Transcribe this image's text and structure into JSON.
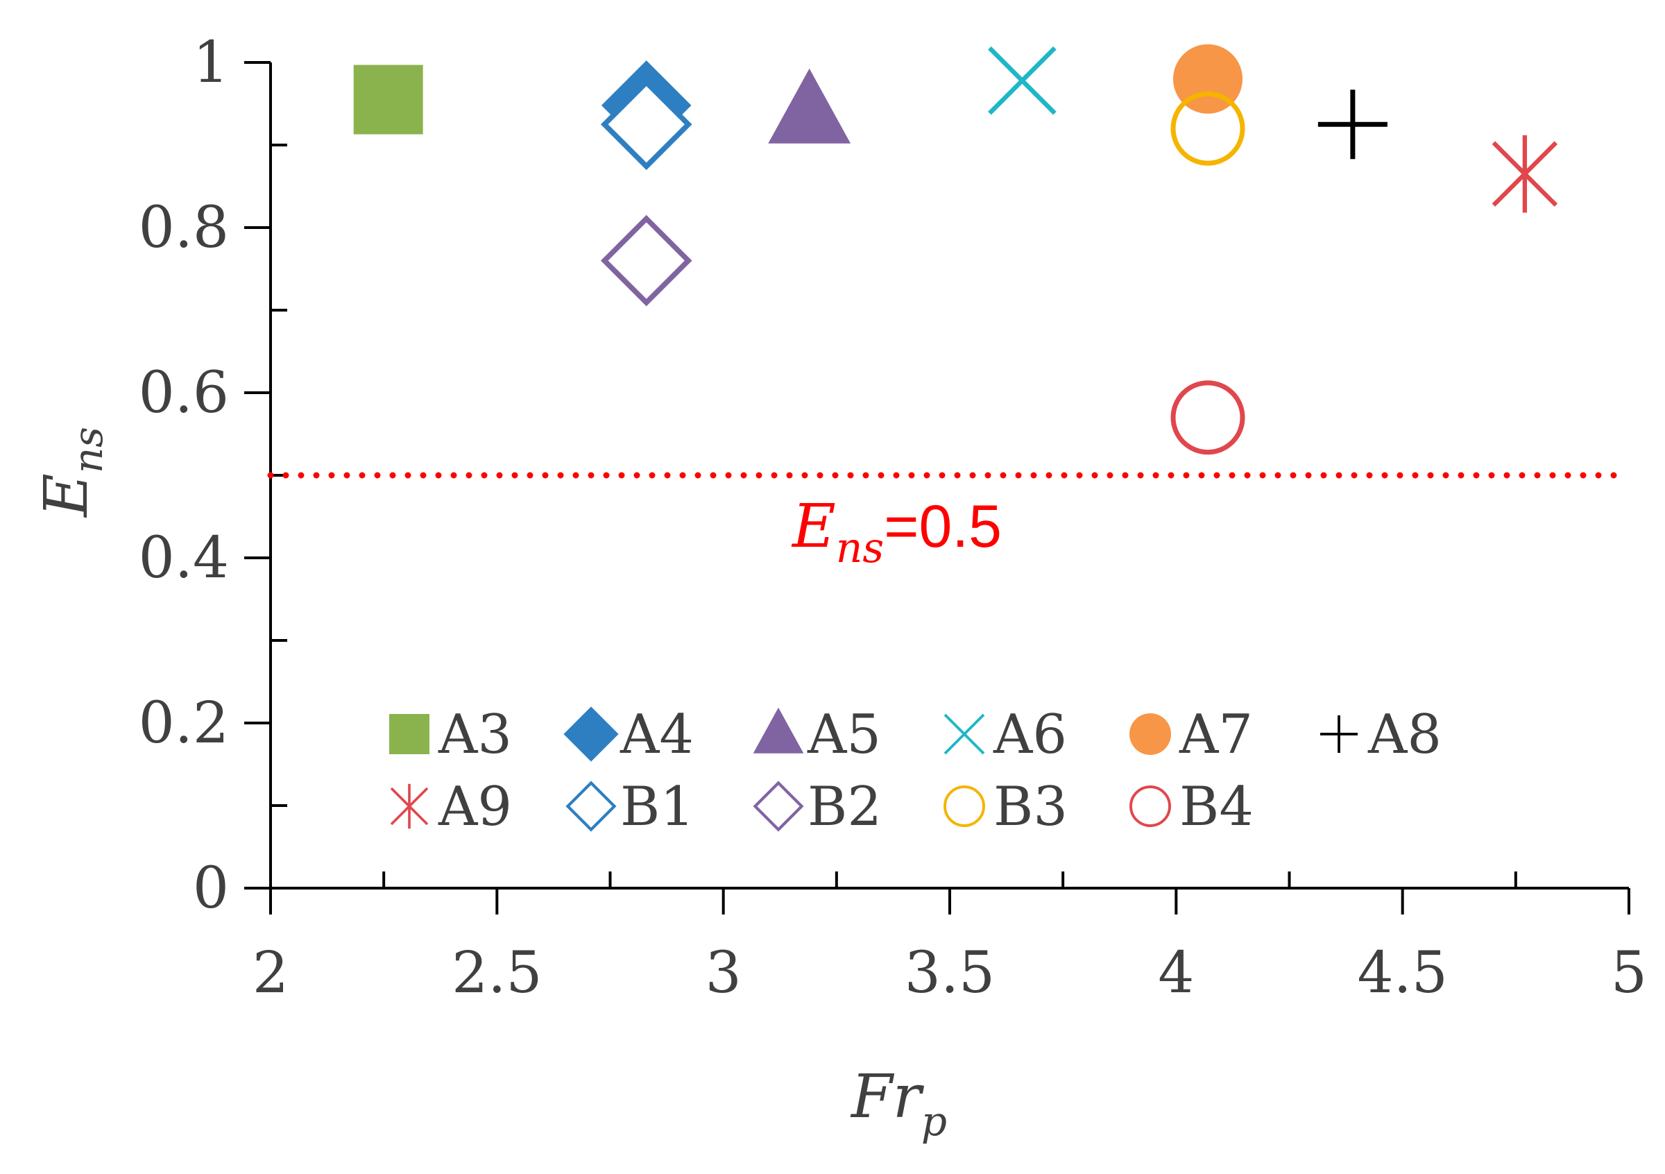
{
  "chart_data": {
    "type": "scatter",
    "xlim": [
      2,
      5
    ],
    "ylim": [
      0,
      1
    ],
    "x_ticks": [
      "2",
      "2.5",
      "3",
      "3.5",
      "4",
      "4.5",
      "5"
    ],
    "y_ticks": [
      "0",
      "0.2",
      "0.4",
      "0.6",
      "0.8",
      "1"
    ],
    "xlabel": {
      "main": "Fr",
      "sub": "p"
    },
    "ylabel": {
      "main": "E",
      "sub": "ns"
    },
    "reference_line": {
      "y": 0.5,
      "color": "#ff0000",
      "style": "dotted",
      "label_main": "E",
      "label_sub": "ns",
      "label_value": "=0.5"
    },
    "grid": false,
    "legend_position": "inside-bottom",
    "series": [
      {
        "name": "A3",
        "marker": "square-filled",
        "color": "#8ab34e",
        "points": [
          [
            2.26,
            0.955
          ]
        ]
      },
      {
        "name": "A4",
        "marker": "diamond-filled",
        "color": "#2e7fc1",
        "points": [
          [
            2.83,
            0.948
          ]
        ]
      },
      {
        "name": "A5",
        "marker": "triangle-filled",
        "color": "#8064a2",
        "points": [
          [
            3.19,
            0.94
          ]
        ]
      },
      {
        "name": "A6",
        "marker": "x",
        "color": "#1fb6c8",
        "points": [
          [
            3.66,
            0.978
          ]
        ]
      },
      {
        "name": "A7",
        "marker": "circle-filled",
        "color": "#f79646",
        "points": [
          [
            4.07,
            0.98
          ]
        ]
      },
      {
        "name": "A8",
        "marker": "plus",
        "color": "#000000",
        "points": [
          [
            4.39,
            0.925
          ]
        ]
      },
      {
        "name": "A9",
        "marker": "asterisk",
        "color": "#e0474c",
        "points": [
          [
            4.77,
            0.865
          ]
        ]
      },
      {
        "name": "B1",
        "marker": "diamond-open",
        "color": "#2e7fc1",
        "points": [
          [
            2.83,
            0.925
          ]
        ]
      },
      {
        "name": "B2",
        "marker": "diamond-open",
        "color": "#8064a2",
        "points": [
          [
            2.83,
            0.76
          ]
        ]
      },
      {
        "name": "B3",
        "marker": "circle-open",
        "color": "#f5b400",
        "points": [
          [
            4.07,
            0.92
          ]
        ]
      },
      {
        "name": "B4",
        "marker": "circle-open",
        "color": "#e0474c",
        "points": [
          [
            4.07,
            0.57
          ]
        ]
      }
    ]
  }
}
